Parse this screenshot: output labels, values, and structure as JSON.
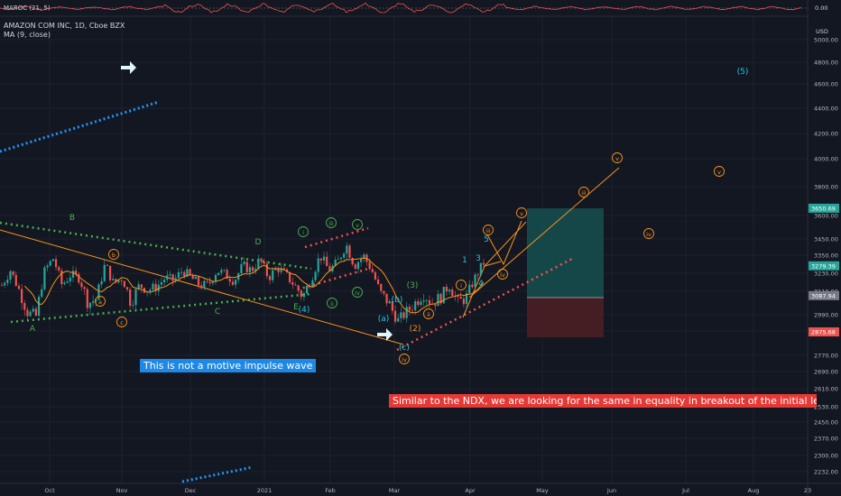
{
  "indicator_pane": {
    "label": "MAROC (21, 5)",
    "axis_value": "0.00"
  },
  "legend": {
    "symbol_line": "AMAZON COM INC, 1D, Cboe BZX",
    "ma_line": "MA (9, close)"
  },
  "axis_unit": "USD",
  "annotations": {
    "note_blue": "This is not a motive impulse wave",
    "note_red": "Similar to the NDX, we are looking for the same in equality in breakout of the initial leg proj"
  },
  "colors": {
    "background": "#131722",
    "candle_up": "#26a69a",
    "candle_down": "#ef5350",
    "wave_green": "#4caf50",
    "wave_orange": "#f7931a",
    "wave_cyan": "#26c6da",
    "target_box": "#17504f",
    "stop_box": "#4a1f24"
  },
  "chart_data": {
    "type": "candlestick",
    "title": "AMAZON COM INC, 1D, Cboe BZX",
    "ylabel": "USD",
    "ylim": [
      2200,
      5800
    ],
    "y_scale": "log",
    "grid": true,
    "y_ticks": [
      "5000.00",
      "4800.00",
      "4600.00",
      "4400.00",
      "4200.00",
      "4000.00",
      "3800.00",
      "3600.00",
      "3450.00",
      "3350.00",
      "3230.00",
      "3110.00",
      "2990.00",
      "2880.00",
      "2770.00",
      "2690.00",
      "2610.00",
      "2530.00",
      "2450.00",
      "2370.00",
      "2300.00",
      "2232.00"
    ],
    "x_ticks": [
      "Oct",
      "Nov",
      "Dec",
      "2021",
      "Feb",
      "Mar",
      "Apr",
      "May",
      "Jun",
      "Jul",
      "Aug",
      "23"
    ],
    "price_tags": [
      {
        "text": "3650.69",
        "value": 3650.69,
        "color": "#26a69a"
      },
      {
        "text": "3279.39",
        "value": 3279.39,
        "color": "#26a69a"
      },
      {
        "text": "3087.94",
        "value": 3087.94,
        "color": "#787b86"
      },
      {
        "text": "2875.68",
        "value": 2875.68,
        "color": "#ef5350"
      }
    ],
    "price_path": [
      3150,
      3250,
      3120,
      3000,
      2980,
      3250,
      3330,
      3150,
      3220,
      3200,
      3050,
      3070,
      3290,
      3160,
      3200,
      3050,
      3150,
      3120,
      3140,
      3200,
      3180,
      3250,
      3200,
      3150,
      3150,
      3250,
      3220,
      3180,
      3280,
      3250,
      3320,
      3200,
      3270,
      3220,
      3150,
      3080,
      3200,
      3350,
      3250,
      3300,
      3420,
      3280,
      3350,
      3250,
      3100,
      3050,
      2950,
      3000,
      3050,
      3100,
      3050,
      3080,
      3150,
      3050,
      3080,
      3200,
      3300
    ],
    "wave_labels": [
      {
        "text": "B",
        "color": "#4caf50",
        "circled": false
      },
      {
        "text": "A",
        "color": "#4caf50",
        "circled": false
      },
      {
        "text": "C",
        "color": "#4caf50",
        "circled": false
      },
      {
        "text": "D",
        "color": "#4caf50",
        "circled": false
      },
      {
        "text": "E",
        "color": "#4caf50",
        "circled": false
      },
      {
        "text": "a",
        "color": "#f7931a",
        "circled": true
      },
      {
        "text": "b",
        "color": "#f7931a",
        "circled": true
      },
      {
        "text": "c",
        "color": "#f7931a",
        "circled": true
      },
      {
        "text": "(4)",
        "color": "#26c6da",
        "circled": false
      },
      {
        "text": "i",
        "color": "#4caf50",
        "circled": true
      },
      {
        "text": "ii",
        "color": "#4caf50",
        "circled": true
      },
      {
        "text": "iii",
        "color": "#4caf50",
        "circled": true
      },
      {
        "text": "iv",
        "color": "#4caf50",
        "circled": true
      },
      {
        "text": "v",
        "color": "#4caf50",
        "circled": true
      },
      {
        "text": "(b)",
        "color": "#26c6da",
        "circled": false
      },
      {
        "text": "(a)",
        "color": "#26c6da",
        "circled": false
      },
      {
        "text": "(c)",
        "color": "#26c6da",
        "circled": false
      },
      {
        "text": "(2)",
        "color": "#f7931a",
        "circled": false
      },
      {
        "text": "iv",
        "color": "#f7931a",
        "circled": true
      },
      {
        "text": "(3)",
        "color": "#4caf50",
        "circled": false
      },
      {
        "text": "i",
        "color": "#f7931a",
        "circled": true
      },
      {
        "text": "ii",
        "color": "#f7931a",
        "circled": true
      },
      {
        "text": "iii",
        "color": "#f7931a",
        "circled": true
      },
      {
        "text": "iv",
        "color": "#f7931a",
        "circled": true
      },
      {
        "text": "v",
        "color": "#f7931a",
        "circled": true
      },
      {
        "text": "1",
        "color": "#26c6da",
        "circled": false
      },
      {
        "text": "3",
        "color": "#26c6da",
        "circled": false
      },
      {
        "text": "4",
        "color": "#26c6da",
        "circled": false
      },
      {
        "text": "5",
        "color": "#26c6da",
        "circled": false
      },
      {
        "text": "iii",
        "color": "#f7931a",
        "circled": true
      },
      {
        "text": "v",
        "color": "#f7931a",
        "circled": true
      },
      {
        "text": "iv",
        "color": "#f7931a",
        "circled": true
      },
      {
        "text": "v",
        "color": "#f7931a",
        "circled": true
      },
      {
        "text": "(5)",
        "color": "#26c6da",
        "circled": false
      }
    ]
  }
}
